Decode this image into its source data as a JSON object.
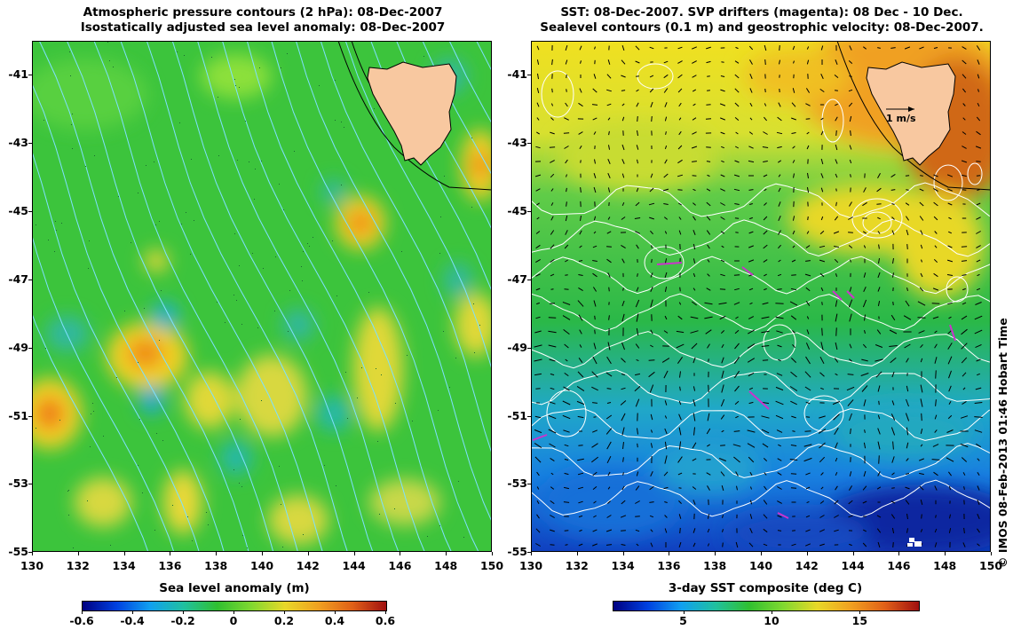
{
  "left": {
    "title_line1": "Atmospheric pressure contours (2 hPa): 08-Dec-2007",
    "title_line2": "Isostatically adjusted sea level anomaly: 08-Dec-2007",
    "colorbar_title": "Sea level anomaly (m)",
    "colorbar_ticks": [
      "-0.6",
      "-0.4",
      "-0.2",
      "0",
      "0.2",
      "0.4",
      "0.6"
    ]
  },
  "right": {
    "title_line1": "SST: 08-Dec-2007. SVP drifters (magenta): 08 Dec - 10 Dec.",
    "title_line2": "Sealevel contours (0.1 m) and geostrophic velocity: 08-Dec-2007.",
    "colorbar_title": "3-day SST composite (deg C)",
    "colorbar_ticks": [
      "5",
      "10",
      "15"
    ],
    "scale_arrow_label": "1 m/s"
  },
  "axes": {
    "lat_ticks": [
      "-41",
      "-43",
      "-45",
      "-47",
      "-49",
      "-51",
      "-53",
      "-55"
    ],
    "lon_ticks": [
      "130",
      "132",
      "134",
      "136",
      "138",
      "140",
      "142",
      "144",
      "146",
      "148",
      "150"
    ]
  },
  "copyright": "© IMOS 08-Feb-2013 01:46 Hobart Time",
  "colors": {
    "land": "#f8c8a0",
    "contour_pressure": "#7fe0ff",
    "contour_sealevel": "#ffffff",
    "drifters": "#cc33cc"
  }
}
